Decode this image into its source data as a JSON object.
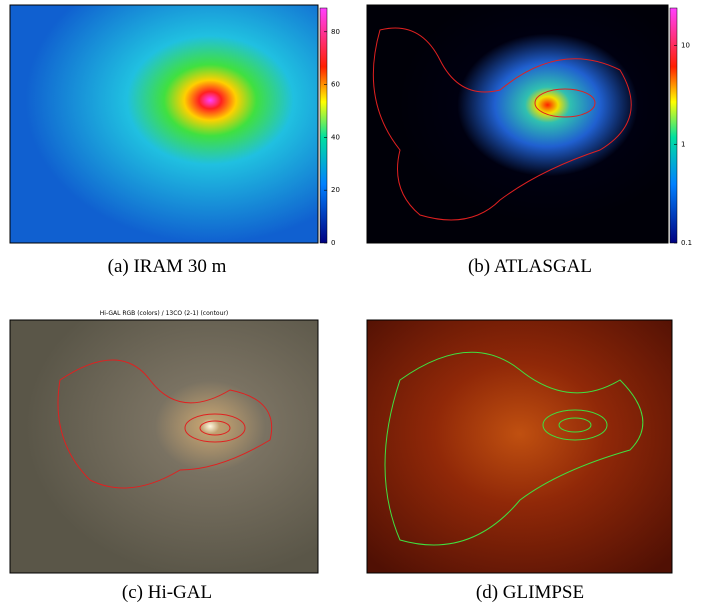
{
  "panels": [
    {
      "caption": "(a)  IRAM 30 m",
      "colorbar": {
        "lim": [
          0,
          89
        ],
        "log": false,
        "ticks": [
          0,
          20,
          40,
          60,
          80
        ]
      }
    },
    {
      "caption": "(b)  ATLASGAL",
      "colorbar": {
        "lim": [
          0.1,
          24
        ],
        "log": true,
        "ticks": [
          0.1,
          1,
          10
        ]
      }
    },
    {
      "title": "Hi-GAL RGB (colors) / 13CO (2-1) (contour)",
      "caption": "(c)  Hi-GAL"
    },
    {
      "caption": "(d)  GLIMPSE"
    }
  ]
}
